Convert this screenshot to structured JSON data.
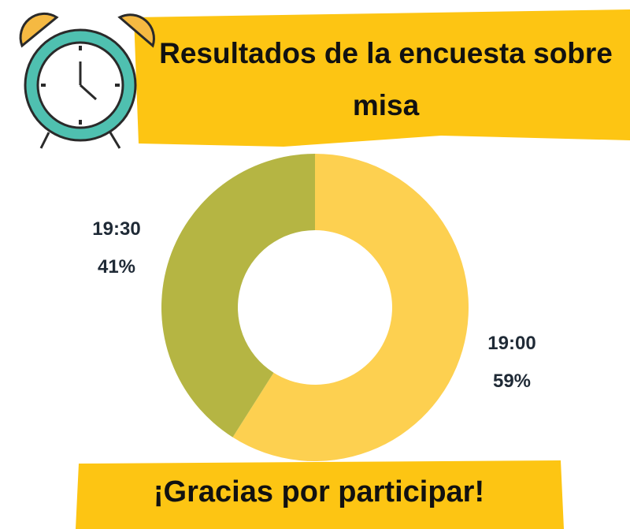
{
  "chart_data": {
    "type": "donut",
    "title": "Resultados de la encuesta sobre misa",
    "categories": [
      "19:00",
      "19:30"
    ],
    "values": [
      59,
      41
    ],
    "value_labels": [
      "59%",
      "41%"
    ],
    "colors": [
      "#fdd050",
      "#b5b543"
    ],
    "annotation": "¡Gracias por participar!"
  }
}
